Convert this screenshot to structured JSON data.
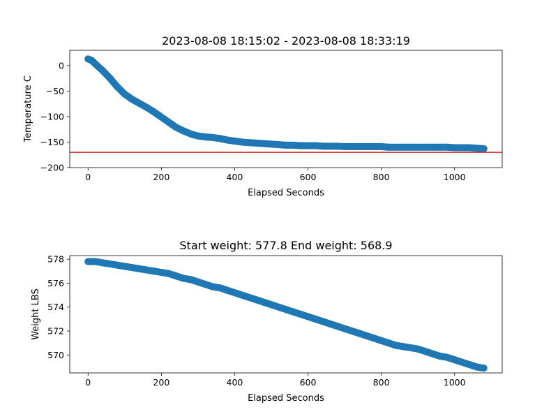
{
  "chart_data": [
    {
      "type": "scatter",
      "title": "2023-08-08 18:15:02 - 2023-08-08 18:33:19",
      "xlabel": "Elapsed Seconds",
      "ylabel": "Temperature C",
      "xlim": [
        -50,
        1130
      ],
      "ylim": [
        -200,
        30
      ],
      "xticks": [
        0,
        200,
        400,
        600,
        800,
        1000
      ],
      "xtick_labels": [
        "0",
        "200",
        "400",
        "600",
        "800",
        "1000"
      ],
      "yticks": [
        -200,
        -150,
        -100,
        -50,
        0
      ],
      "ytick_labels": [
        "−200",
        "−150",
        "−100",
        "−50",
        "0"
      ],
      "grid": false,
      "color": "#1f77b4",
      "reference_line": {
        "y": -170,
        "color": "#d62728"
      },
      "x": [
        0,
        10,
        20,
        40,
        60,
        80,
        100,
        120,
        140,
        160,
        180,
        200,
        220,
        240,
        260,
        280,
        300,
        320,
        340,
        360,
        380,
        400,
        420,
        440,
        460,
        480,
        500,
        520,
        540,
        560,
        580,
        600,
        620,
        640,
        660,
        680,
        700,
        720,
        740,
        760,
        780,
        800,
        820,
        840,
        860,
        880,
        900,
        920,
        940,
        960,
        980,
        1000,
        1020,
        1040,
        1060,
        1080
      ],
      "y": [
        13,
        10,
        3,
        -10,
        -25,
        -42,
        -56,
        -66,
        -74,
        -82,
        -91,
        -101,
        -111,
        -121,
        -128,
        -134,
        -138,
        -140,
        -141,
        -143,
        -146,
        -148,
        -150,
        -151,
        -152,
        -153,
        -154,
        -155,
        -156,
        -156,
        -157,
        -157,
        -157,
        -158,
        -158,
        -158,
        -159,
        -159,
        -159,
        -159,
        -159,
        -159,
        -160,
        -160,
        -160,
        -160,
        -160,
        -160,
        -160,
        -160,
        -160,
        -161,
        -161,
        -161,
        -162,
        -163
      ]
    },
    {
      "type": "scatter",
      "title": "Start weight: 577.8 End weight: 568.9",
      "xlabel": "Elapsed Seconds",
      "ylabel": "Weight LBS",
      "xlim": [
        -50,
        1130
      ],
      "ylim": [
        568.5,
        578.3
      ],
      "xticks": [
        0,
        200,
        400,
        600,
        800,
        1000
      ],
      "xtick_labels": [
        "0",
        "200",
        "400",
        "600",
        "800",
        "1000"
      ],
      "yticks": [
        570,
        572,
        574,
        576,
        578
      ],
      "ytick_labels": [
        "570",
        "572",
        "574",
        "576",
        "578"
      ],
      "grid": false,
      "color": "#1f77b4",
      "x": [
        0,
        20,
        40,
        60,
        80,
        100,
        120,
        140,
        160,
        180,
        200,
        220,
        240,
        260,
        280,
        300,
        320,
        340,
        360,
        380,
        400,
        420,
        440,
        460,
        480,
        500,
        520,
        540,
        560,
        580,
        600,
        620,
        640,
        660,
        680,
        700,
        720,
        740,
        760,
        780,
        800,
        820,
        840,
        860,
        880,
        900,
        920,
        940,
        960,
        980,
        1000,
        1020,
        1040,
        1060,
        1080
      ],
      "y": [
        577.8,
        577.8,
        577.7,
        577.6,
        577.5,
        577.4,
        577.3,
        577.2,
        577.1,
        577.0,
        576.9,
        576.8,
        576.6,
        576.4,
        576.3,
        576.1,
        575.9,
        575.7,
        575.6,
        575.4,
        575.2,
        575.0,
        574.8,
        574.6,
        574.4,
        574.2,
        574.0,
        573.8,
        573.6,
        573.4,
        573.2,
        573.0,
        572.8,
        572.6,
        572.4,
        572.2,
        572.0,
        571.8,
        571.6,
        571.4,
        571.2,
        571.0,
        570.8,
        570.7,
        570.6,
        570.5,
        570.3,
        570.1,
        569.9,
        569.8,
        569.6,
        569.4,
        569.2,
        569.0,
        568.9
      ]
    }
  ]
}
